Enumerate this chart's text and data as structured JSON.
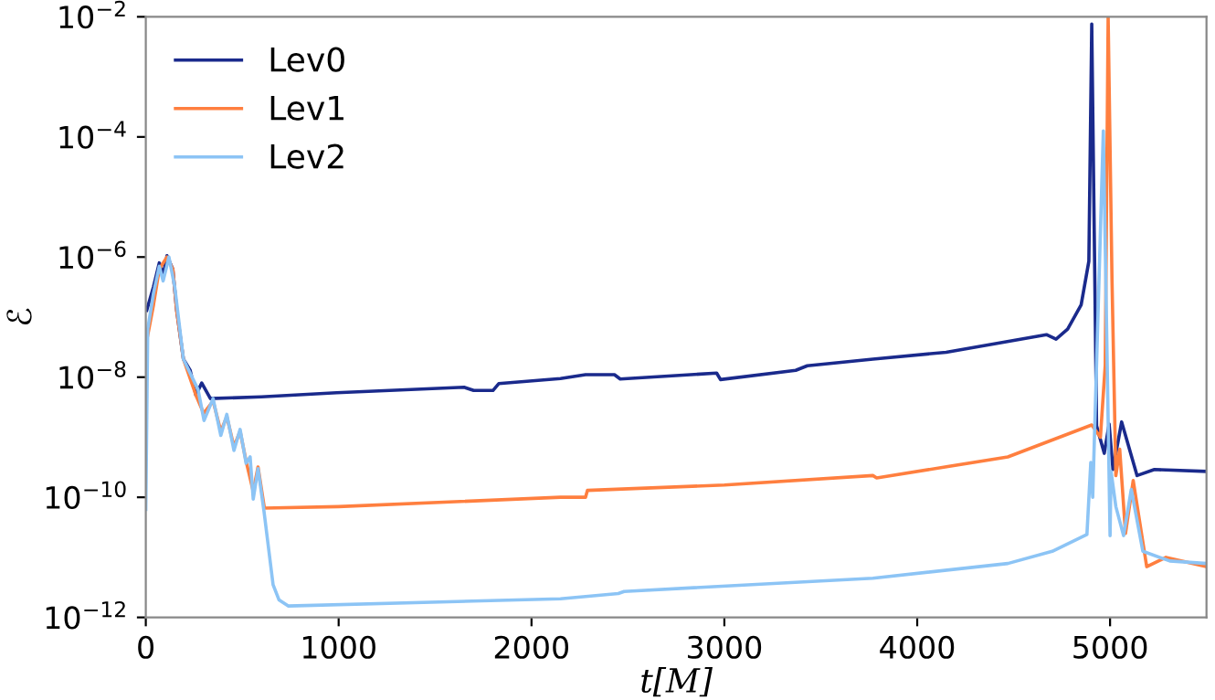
{
  "chart_data": {
    "type": "line",
    "xlabel": "t[M]",
    "ylabel": "ℰ",
    "log": "y",
    "legend": "top left",
    "grid": false,
    "xlim": [
      0,
      5500
    ],
    "xticks": [
      0,
      1000,
      2000,
      3000,
      4000,
      5000
    ],
    "ylim": [
      1e-12,
      0.01
    ],
    "yticks": [
      {
        "value": 1e-12,
        "label": "10$^{−12}$"
      },
      {
        "value": 1e-10,
        "label": "10$^{−10}$"
      },
      {
        "value": 1e-08,
        "label": "10$^{−8}$"
      },
      {
        "value": 1e-06,
        "label": "10$^{−6}$"
      },
      {
        "value": 0.0001,
        "label": "10$^{−4}$"
      },
      {
        "value": 0.01,
        "label": "10$^{−2}$"
      }
    ],
    "series": [
      {
        "name": "Lev0",
        "color": "#1a2a8c",
        "x": [
          5,
          40,
          70,
          90,
          110,
          140,
          160,
          195,
          230,
          260,
          290,
          335,
          600,
          990,
          1650,
          1700,
          1800,
          1830,
          2150,
          2280,
          2430,
          2460,
          2960,
          2980,
          3370,
          3430,
          3770,
          4150,
          4670,
          4720,
          4780,
          4850,
          4890,
          4905,
          4930,
          4970,
          4995,
          5015,
          5060,
          5140,
          5230,
          5500
        ],
        "values": [
          1.3e-07,
          3.2e-07,
          8e-07,
          5e-07,
          1.05e-06,
          6.3e-07,
          1.3e-07,
          2e-08,
          1.3e-08,
          5e-09,
          8e-09,
          4.4e-09,
          4.7e-09,
          5.5e-09,
          6.8e-09,
          6e-09,
          6e-09,
          7.8e-09,
          9.5e-09,
          1.1e-08,
          1.1e-08,
          9.3e-09,
          1.17e-08,
          9.1e-09,
          1.3e-08,
          1.55e-08,
          2e-08,
          2.6e-08,
          5.1e-08,
          4.3e-08,
          6.3e-08,
          1.6e-07,
          8.5e-07,
          0.0076,
          1.55e-09,
          5.4e-10,
          1.66e-09,
          2.9e-10,
          1.8e-09,
          2.3e-10,
          2.9e-10,
          2.7e-10
        ]
      },
      {
        "name": "Lev1",
        "color": "#ff7f3f",
        "x": [
          10,
          40,
          70,
          110,
          140,
          160,
          195,
          260,
          300,
          349,
          389,
          420,
          457,
          489,
          520,
          557,
          582,
          615,
          1000,
          2150,
          2280,
          2290,
          3000,
          3770,
          3790,
          4470,
          4905,
          4950,
          4975,
          4990,
          5010,
          5030,
          5050,
          5080,
          5120,
          5190,
          5290,
          5500
        ],
        "values": [
          5e-08,
          1.6e-07,
          6.3e-07,
          1e-06,
          6.3e-07,
          1.3e-07,
          2e-08,
          5e-09,
          2.5e-09,
          4e-09,
          1.26e-09,
          2.2e-09,
          7e-10,
          1.26e-09,
          4e-10,
          1.26e-10,
          3.2e-10,
          6.6e-11,
          7e-11,
          1e-10,
          1e-10,
          1.3e-10,
          1.6e-10,
          2.3e-10,
          2.1e-10,
          4.7e-10,
          1.6e-09,
          1e-09,
          1.6e-08,
          0.01,
          4.2e-07,
          2.3e-10,
          6.3e-10,
          2.5e-11,
          1.9e-10,
          7e-12,
          1e-11,
          7e-12
        ]
      },
      {
        "name": "Lev2",
        "color": "#8cc4f5",
        "x": [
          0,
          10,
          40,
          70,
          90,
          120,
          150,
          195,
          271,
          302,
          349,
          389,
          420,
          457,
          489,
          520,
          541,
          557,
          582,
          613,
          660,
          691,
          738,
          2150,
          2450,
          2480,
          3770,
          4470,
          4700,
          4880,
          4900,
          4910,
          4965,
          5000,
          5005,
          5030,
          5070,
          5110,
          5170,
          5310,
          5500
        ],
        "values": [
          6.3e-11,
          6.3e-08,
          2.5e-07,
          7e-07,
          4e-07,
          1e-06,
          3.2e-07,
          2e-08,
          6.2e-09,
          1.9e-09,
          4.4e-09,
          1.07e-09,
          2.4e-09,
          6e-10,
          1.35e-09,
          3.7e-10,
          4.7e-10,
          9.3e-11,
          3e-10,
          5.8e-11,
          3.5e-12,
          1.95e-12,
          1.55e-12,
          2.04e-12,
          2.5e-12,
          2.7e-12,
          4.5e-12,
          7.9e-12,
          1.26e-11,
          2.4e-11,
          3.8e-10,
          1e-10,
          0.000126,
          2.3e-11,
          2.7e-10,
          7e-11,
          2.3e-11,
          1.35e-10,
          1.26e-11,
          8.7e-12,
          7.9e-12
        ]
      }
    ]
  }
}
